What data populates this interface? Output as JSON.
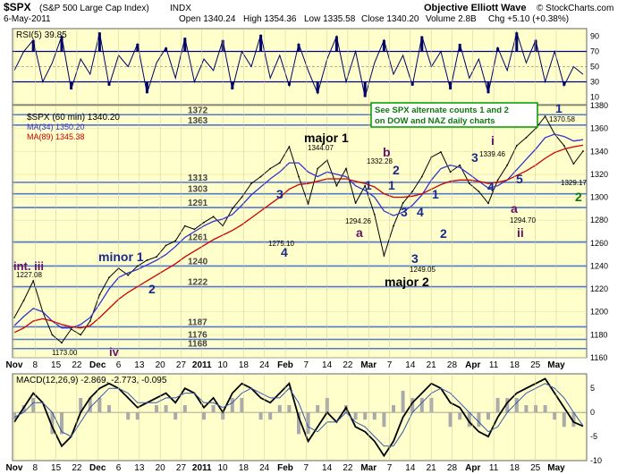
{
  "header": {
    "symbol": "$SPX",
    "name": "(S&P 500 Large Cap Index)",
    "exchange": "INDX",
    "date": "6-May-2011",
    "open": "Open 1340.24",
    "high": "High 1354.36",
    "low": "Low 1335.58",
    "close": "Close 1340.20",
    "volume": "Volume 2.8B",
    "change": "Chg +5.10 (+0.38%)",
    "source": "Objective Elliott Wave",
    "copyright": "© StockCharts.com"
  },
  "colors": {
    "panel_bg": "#ffffcc",
    "price": "#000000",
    "ma34": "#3333cc",
    "ma89": "#cc0000",
    "level_line": "#5577cc",
    "wave_blue": "#1a2a8c",
    "wave_purple": "#661166",
    "wave_green": "#117711",
    "note_border": "#009900",
    "rsi_fill": "#000066",
    "divergence_red": "#ff0000",
    "divergence_green": "#00aa00"
  },
  "rsi": {
    "label": "RSI(5) 39.85",
    "ticks": [
      "90",
      "70",
      "50",
      "30",
      "10"
    ]
  },
  "price_panel": {
    "legend_symbol": "$SPX (60 min) 1340.20",
    "legend_ma34": "MA(34) 1350.20",
    "legend_ma89": "MA(89) 1345.38",
    "y_ticks": [
      "1380",
      "1360",
      "1340",
      "1320",
      "1300",
      "1280",
      "1260",
      "1240",
      "1220",
      "1200",
      "1180",
      "1160"
    ],
    "levels": [
      "1372",
      "1363",
      "1313",
      "1303",
      "1291",
      "1261",
      "1240",
      "1222",
      "1187",
      "1176",
      "1168"
    ],
    "note_line1": "See SPX alternate counts 1 and 2",
    "note_line2": "on DOW and NAZ daily charts"
  },
  "waves": {
    "int_iii": "int. iii",
    "iv": "iv",
    "minor_1": "minor 1",
    "minor_2": "2",
    "w3": "3",
    "w4": "4",
    "major_1": "major 1",
    "a1": "a",
    "b1": "b",
    "c_2": "2",
    "c_1": "1",
    "c_3": "3",
    "c_4": "4",
    "r_1": "1",
    "r_2": "2",
    "major_2": "major 2",
    "i": "i",
    "s3": "3",
    "s4": "4",
    "s5": "5",
    "a2": "a",
    "ii": "ii",
    "new_1": "1",
    "new_2": "2"
  },
  "annotations": {
    "p1227": "1227.08",
    "p1173": "1173.00",
    "p1275": "1275.10",
    "p1344": "1344.07",
    "p1294a": "1294.26",
    "p1332": "1332.28",
    "p1249": "1249.05",
    "p1339": "1339.46",
    "p1294b": "1294.70",
    "p1370": "1370.58",
    "p1329": "1329.17"
  },
  "macd": {
    "label": "MACD(12,26,9) -2.869, -2.773, -0.095",
    "ticks": [
      "5",
      "0",
      "-5",
      "-10"
    ]
  },
  "x_axis": {
    "labels": [
      "Nov",
      "8",
      "15",
      "22",
      "Dec",
      "6",
      "13",
      "20",
      "27",
      "2011",
      "10",
      "18",
      "24",
      "Feb",
      "7",
      "14",
      "22",
      "Mar",
      "7",
      "14",
      "21",
      "28",
      "Apr",
      "11",
      "18",
      "25",
      "May"
    ]
  },
  "chart_data": {
    "type": "line",
    "title": "$SPX (S&P 500 Large Cap Index) INDX",
    "subtitle": "$SPX (60 min) 1340.20",
    "ylim": [
      1160,
      1380
    ],
    "x_labels": [
      "Nov",
      "8",
      "15",
      "22",
      "Dec",
      "6",
      "13",
      "20",
      "27",
      "2011",
      "10",
      "18",
      "24",
      "Feb",
      "7",
      "14",
      "22",
      "Mar",
      "7",
      "14",
      "21",
      "28",
      "Apr",
      "11",
      "18",
      "25",
      "May"
    ],
    "series": [
      {
        "name": "$SPX (60 min)",
        "color": "#000000",
        "values": [
          1195,
          1210,
          1227.08,
          1200,
          1180,
          1173.0,
          1185,
          1180,
          1192,
          1215,
          1230,
          1238,
          1232,
          1240,
          1245,
          1248,
          1258,
          1262,
          1275,
          1272,
          1278,
          1283,
          1275.1,
          1290,
          1300,
          1312,
          1318,
          1325,
          1330,
          1344.07,
          1318,
          1294.26,
          1325,
          1332.28,
          1310,
          1325,
          1295,
          1310,
          1285,
          1249.05,
          1275,
          1295,
          1305,
          1318,
          1335,
          1339.46,
          1322,
          1328,
          1312,
          1305,
          1294.7,
          1315,
          1328,
          1345,
          1352,
          1360,
          1370.58,
          1355,
          1345,
          1329.17,
          1340.2
        ]
      },
      {
        "name": "MA(34)",
        "color": "#3333cc",
        "values": [
          1188,
          1196,
          1203,
          1200,
          1192,
          1186,
          1186,
          1189,
          1195,
          1207,
          1220,
          1230,
          1234,
          1237,
          1241,
          1245,
          1250,
          1257,
          1265,
          1270,
          1275,
          1279,
          1281,
          1285,
          1293,
          1302,
          1309,
          1316,
          1322,
          1330,
          1330,
          1322,
          1318,
          1322,
          1320,
          1318,
          1310,
          1306,
          1300,
          1288,
          1284,
          1287,
          1293,
          1302,
          1315,
          1325,
          1328,
          1326,
          1320,
          1314,
          1308,
          1310,
          1315,
          1324,
          1333,
          1342,
          1352,
          1355,
          1353,
          1349,
          1350.2
        ]
      },
      {
        "name": "MA(89)",
        "color": "#cc0000",
        "values": [
          1182,
          1186,
          1192,
          1194,
          1192,
          1189,
          1187,
          1186,
          1188,
          1195,
          1203,
          1211,
          1217,
          1222,
          1227,
          1232,
          1237,
          1242,
          1248,
          1253,
          1258,
          1263,
          1267,
          1271,
          1276,
          1282,
          1288,
          1294,
          1300,
          1307,
          1311,
          1312,
          1314,
          1316,
          1316,
          1316,
          1314,
          1312,
          1309,
          1303,
          1300,
          1300,
          1301,
          1303,
          1307,
          1311,
          1314,
          1315,
          1315,
          1314,
          1312,
          1313,
          1315,
          1319,
          1323,
          1328,
          1334,
          1339,
          1342,
          1344,
          1345.38
        ]
      }
    ],
    "horizontal_levels": [
      1372,
      1363,
      1313,
      1303,
      1291,
      1261,
      1240,
      1222,
      1187,
      1176,
      1168
    ],
    "rsi": {
      "label": "RSI(5) 39.85",
      "ylim": [
        0,
        100
      ],
      "ticks": [
        90,
        70,
        50,
        30,
        10
      ],
      "values": [
        45,
        70,
        85,
        30,
        55,
        90,
        20,
        60,
        40,
        95,
        25,
        65,
        50,
        80,
        15,
        55,
        75,
        35,
        88,
        30,
        60,
        45,
        85,
        20,
        70,
        50,
        92,
        35,
        65,
        25,
        80,
        45,
        15,
        60,
        90,
        30,
        70,
        10,
        55,
        85,
        40,
        65,
        25,
        90,
        50,
        70,
        20,
        80,
        35,
        60,
        15,
        75,
        45,
        95,
        55,
        85,
        30,
        70,
        25,
        50,
        39.85
      ]
    },
    "macd": {
      "label": "MACD(12,26,9) -2.869, -2.773, -0.095",
      "ylim": [
        -10,
        8
      ],
      "ticks": [
        5,
        0,
        -5,
        -10
      ],
      "macd": [
        -2,
        1,
        4,
        2,
        -3,
        -7,
        -5,
        0,
        3,
        5,
        6,
        5,
        3,
        1,
        2,
        3,
        4,
        2,
        5,
        4,
        1,
        3,
        0,
        4,
        6,
        5,
        3,
        2,
        4,
        6,
        -1,
        -6,
        -3,
        0,
        -2,
        1,
        -3,
        -4,
        -6,
        -9,
        -6,
        -1,
        2,
        4,
        6,
        5,
        2,
        1,
        -2,
        -4,
        -5,
        -1,
        2,
        4,
        5,
        6,
        7,
        4,
        1,
        -2,
        -2.869
      ],
      "signal": [
        -1,
        0,
        2,
        2,
        0,
        -4,
        -5,
        -2,
        1,
        3,
        5,
        5,
        4,
        2,
        2,
        2,
        3,
        3,
        4,
        4,
        2,
        2,
        1,
        2,
        4,
        5,
        4,
        3,
        3,
        5,
        2,
        -3,
        -4,
        -2,
        -2,
        0,
        -2,
        -3,
        -5,
        -7,
        -7,
        -4,
        0,
        2,
        4,
        5,
        4,
        2,
        0,
        -2,
        -4,
        -3,
        0,
        2,
        4,
        5,
        6,
        5,
        3,
        0,
        -2.773
      ]
    }
  }
}
